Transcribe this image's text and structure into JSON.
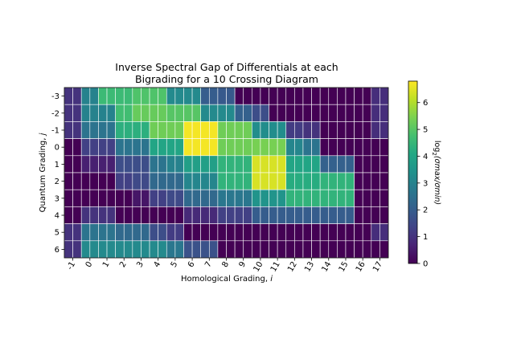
{
  "chart_data": {
    "type": "heatmap",
    "title_lines": [
      "Inverse Spectral Gap of Differentials at each",
      "Bigrading for a 10 Crossing Diagram"
    ],
    "xlabel": "Homological Grading, ",
    "xlabel_var": "i",
    "ylabel": "Quantum Grading, ",
    "ylabel_var": "j",
    "x_labels": [
      "-1",
      "0",
      "1",
      "2",
      "3",
      "4",
      "5",
      "6",
      "7",
      "8",
      "9",
      "10",
      "11",
      "12",
      "13",
      "14",
      "15",
      "16",
      "17"
    ],
    "y_labels": [
      "-3",
      "-2",
      "-1",
      "0",
      "1",
      "2",
      "3",
      "4",
      "5",
      "6"
    ],
    "colorbar": {
      "label_main": "log",
      "label_sub": "2",
      "label_rest": "(σmax/σmin)",
      "min": 0,
      "max": 6.8,
      "ticks": [
        0,
        1,
        2,
        3,
        4,
        5,
        6
      ]
    },
    "cell_columns": 38,
    "note": "each homological column spans two cells; values are estimated log2 ratios",
    "values": [
      [
        1.0,
        1.0,
        3.0,
        3.0,
        4.6,
        4.6,
        4.6,
        4.6,
        4.9,
        4.9,
        4.9,
        4.9,
        3.2,
        3.2,
        3.2,
        3.2,
        2.0,
        2.0,
        1.9,
        1.9,
        0.0,
        0.0,
        0.0,
        0.0,
        0.0,
        0.0,
        0.0,
        0.0,
        0.0,
        0.0,
        0.0,
        0.0,
        0.0,
        0.0,
        0.0,
        0.0,
        0.9,
        0.9
      ],
      [
        1.0,
        1.0,
        3.0,
        3.0,
        3.0,
        3.0,
        4.7,
        4.7,
        5.2,
        5.2,
        5.2,
        5.2,
        5.0,
        5.0,
        5.0,
        5.0,
        3.2,
        3.2,
        3.2,
        3.2,
        2.1,
        2.1,
        1.6,
        1.6,
        0.0,
        0.0,
        0.0,
        0.0,
        0.0,
        0.0,
        0.0,
        0.0,
        0.0,
        0.0,
        0.0,
        0.0,
        0.9,
        0.9
      ],
      [
        1.0,
        1.0,
        2.6,
        2.6,
        2.6,
        2.6,
        4.3,
        4.3,
        4.3,
        4.3,
        5.3,
        5.3,
        5.3,
        5.3,
        6.7,
        6.7,
        6.7,
        6.7,
        5.3,
        5.3,
        5.3,
        5.3,
        3.3,
        3.3,
        3.3,
        3.3,
        1.2,
        1.2,
        1.0,
        1.0,
        0.0,
        0.0,
        0.0,
        0.0,
        0.0,
        0.0,
        0.9,
        0.9
      ],
      [
        0.0,
        0.0,
        1.3,
        1.3,
        1.3,
        1.3,
        2.6,
        2.6,
        2.6,
        2.6,
        4.0,
        4.0,
        4.0,
        4.0,
        6.7,
        6.7,
        6.7,
        6.7,
        5.3,
        5.3,
        5.3,
        5.3,
        5.4,
        5.4,
        5.4,
        5.4,
        3.1,
        3.1,
        2.6,
        2.6,
        0.0,
        0.0,
        0.0,
        0.0,
        0.0,
        0.0,
        0.0,
        0.0
      ],
      [
        0.0,
        0.0,
        0.6,
        0.6,
        0.6,
        0.6,
        1.6,
        1.6,
        1.6,
        1.6,
        2.6,
        2.6,
        3.0,
        3.0,
        3.8,
        3.8,
        3.8,
        3.8,
        4.4,
        4.4,
        4.4,
        4.4,
        6.4,
        6.4,
        6.4,
        6.4,
        4.0,
        4.0,
        4.0,
        4.0,
        2.1,
        2.1,
        2.1,
        2.1,
        0.0,
        0.0,
        0.0,
        0.0
      ],
      [
        0.0,
        0.0,
        0.0,
        0.0,
        0.0,
        0.0,
        1.3,
        1.3,
        1.5,
        1.5,
        2.3,
        2.3,
        2.3,
        2.3,
        3.1,
        3.1,
        3.1,
        3.1,
        4.4,
        4.4,
        4.4,
        4.4,
        6.4,
        6.4,
        6.4,
        6.4,
        4.2,
        4.2,
        4.2,
        4.2,
        4.4,
        4.4,
        4.4,
        4.4,
        0.0,
        0.0,
        0.0,
        0.0
      ],
      [
        0.0,
        0.0,
        0.0,
        0.0,
        0.0,
        0.0,
        0.0,
        0.0,
        0.4,
        0.4,
        1.3,
        1.3,
        1.5,
        1.5,
        2.3,
        2.3,
        2.3,
        2.3,
        2.7,
        2.7,
        2.7,
        2.7,
        3.5,
        3.5,
        3.5,
        3.5,
        4.4,
        4.4,
        4.4,
        4.4,
        4.4,
        4.4,
        4.4,
        4.4,
        0.0,
        0.0,
        0.0,
        0.0
      ],
      [
        0.0,
        0.0,
        1.0,
        1.0,
        1.0,
        1.0,
        0.0,
        0.0,
        0.0,
        0.0,
        0.0,
        0.0,
        0.0,
        0.0,
        0.8,
        0.8,
        0.8,
        0.8,
        1.3,
        1.3,
        1.3,
        1.3,
        2.0,
        2.0,
        2.0,
        2.0,
        2.0,
        2.0,
        2.0,
        2.0,
        2.0,
        2.0,
        2.0,
        2.0,
        0.0,
        0.0,
        0.0,
        0.0
      ],
      [
        1.0,
        1.0,
        2.6,
        2.6,
        2.6,
        2.6,
        2.3,
        2.3,
        2.3,
        2.3,
        1.6,
        1.6,
        1.2,
        1.2,
        0.0,
        0.0,
        0.0,
        0.0,
        0.0,
        0.0,
        0.0,
        0.0,
        0.0,
        0.0,
        0.0,
        0.0,
        0.0,
        0.0,
        0.0,
        0.0,
        0.0,
        0.0,
        0.0,
        0.0,
        0.0,
        0.0,
        0.9,
        0.9
      ],
      [
        1.0,
        1.0,
        3.2,
        3.2,
        3.2,
        3.2,
        3.2,
        3.2,
        3.2,
        3.2,
        3.2,
        3.2,
        2.7,
        2.7,
        1.7,
        1.7,
        1.7,
        1.7,
        0.0,
        0.0,
        0.0,
        0.0,
        0.0,
        0.0,
        0.0,
        0.0,
        0.0,
        0.0,
        0.0,
        0.0,
        0.0,
        0.0,
        0.0,
        0.0,
        0.0,
        0.0,
        0.0,
        0.0
      ]
    ]
  }
}
